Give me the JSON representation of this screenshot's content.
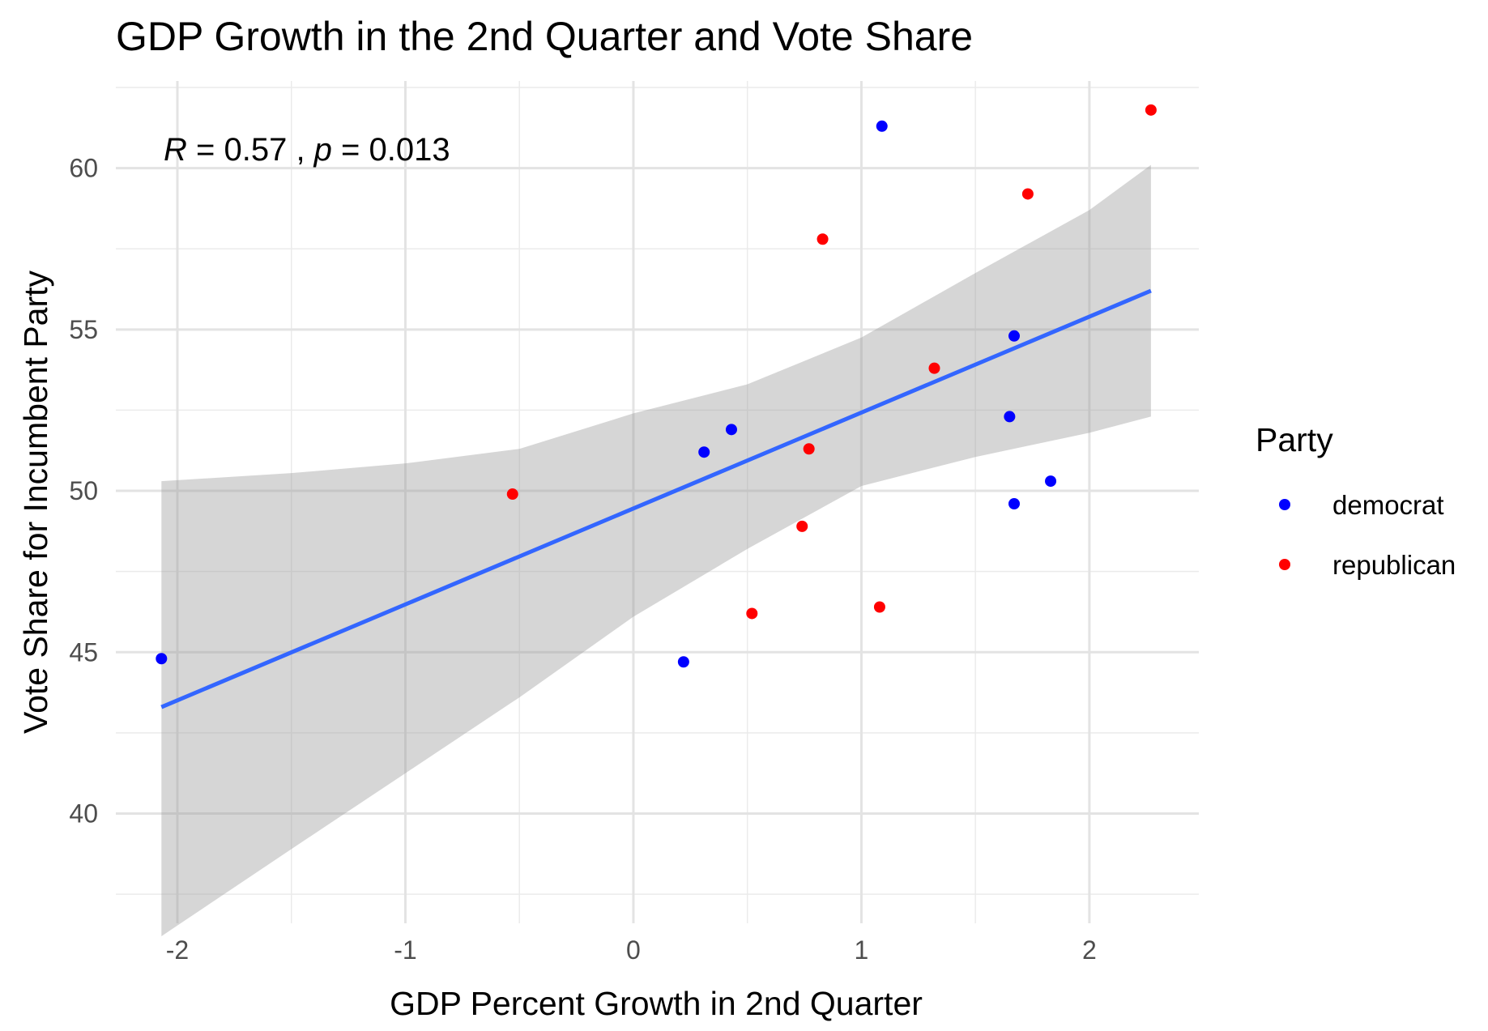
{
  "chart_data": {
    "type": "scatter",
    "title": "GDP Growth in the 2nd Quarter and Vote Share",
    "xlabel": "GDP Percent Growth in 2nd Quarter",
    "ylabel": "Vote Share for Incumbent Party",
    "xlim": [
      -2.27,
      2.48
    ],
    "ylim": [
      36.6,
      62.7
    ],
    "x_ticks": [
      -2,
      -1,
      0,
      1,
      2
    ],
    "x_tick_labels": [
      "-2",
      "-1",
      "0",
      "1",
      "2"
    ],
    "y_ticks": [
      40,
      45,
      50,
      55,
      60
    ],
    "y_tick_labels": [
      "40",
      "45",
      "50",
      "55",
      "60"
    ],
    "grid": true,
    "annotation": {
      "r_symbol": "R",
      "r_text": " = 0.57 , ",
      "p_symbol": "p",
      "p_text": " = 0.013"
    },
    "legend": {
      "title": "Party",
      "placement": "right",
      "entries": [
        {
          "label": "democrat",
          "color": "#0000ff"
        },
        {
          "label": "republican",
          "color": "#ff0000"
        }
      ]
    },
    "series": [
      {
        "name": "democrat",
        "color": "#0000ff",
        "points": [
          {
            "x": -2.07,
            "y": 44.8
          },
          {
            "x": 0.22,
            "y": 44.7
          },
          {
            "x": 0.31,
            "y": 51.2
          },
          {
            "x": 0.43,
            "y": 51.9
          },
          {
            "x": 1.09,
            "y": 61.3
          },
          {
            "x": 1.65,
            "y": 52.3
          },
          {
            "x": 1.67,
            "y": 54.8
          },
          {
            "x": 1.67,
            "y": 49.6
          },
          {
            "x": 1.83,
            "y": 50.3
          }
        ]
      },
      {
        "name": "republican",
        "color": "#ff0000",
        "points": [
          {
            "x": -0.53,
            "y": 49.9
          },
          {
            "x": 0.52,
            "y": 46.2
          },
          {
            "x": 0.74,
            "y": 48.9
          },
          {
            "x": 0.77,
            "y": 51.3
          },
          {
            "x": 0.83,
            "y": 57.8
          },
          {
            "x": 1.08,
            "y": 46.4
          },
          {
            "x": 1.32,
            "y": 53.8
          },
          {
            "x": 1.73,
            "y": 59.2
          },
          {
            "x": 2.27,
            "y": 61.8
          }
        ]
      }
    ],
    "regression": {
      "color": "#3366ff",
      "band_color": "#999999",
      "x": [
        -2.07,
        2.27
      ],
      "y": [
        43.3,
        56.2
      ]
    },
    "confidence_band": [
      {
        "x": -2.07,
        "lo": 36.2,
        "hi": 50.3
      },
      {
        "x": -1.5,
        "lo": 38.9,
        "hi": 50.55
      },
      {
        "x": -1.0,
        "lo": 41.25,
        "hi": 50.85
      },
      {
        "x": -0.5,
        "lo": 43.6,
        "hi": 51.3
      },
      {
        "x": 0.0,
        "lo": 46.1,
        "hi": 52.4
      },
      {
        "x": 0.5,
        "lo": 48.2,
        "hi": 53.3
      },
      {
        "x": 1.0,
        "lo": 50.15,
        "hi": 54.75
      },
      {
        "x": 1.5,
        "lo": 51.05,
        "hi": 56.75
      },
      {
        "x": 2.0,
        "lo": 51.8,
        "hi": 58.7
      },
      {
        "x": 2.27,
        "lo": 52.3,
        "hi": 60.1
      }
    ]
  }
}
